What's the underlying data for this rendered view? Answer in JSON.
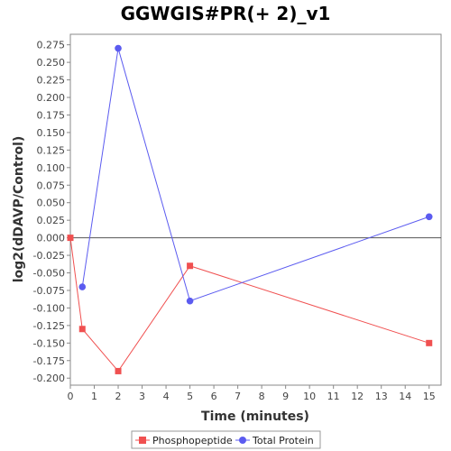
{
  "chart_data": {
    "type": "line",
    "title": "GGWGIS#PR(+ 2)_v1",
    "xlabel": "Time (minutes)",
    "ylabel": "log2(dDAVP/Control)",
    "xlim": [
      0,
      15.5
    ],
    "ylim": [
      -0.21,
      0.29
    ],
    "x_ticks": [
      0,
      1,
      2,
      3,
      4,
      5,
      6,
      7,
      8,
      9,
      10,
      11,
      12,
      13,
      14,
      15
    ],
    "y_ticks": [
      0.275,
      0.25,
      0.225,
      0.2,
      0.175,
      0.15,
      0.125,
      0.1,
      0.075,
      0.05,
      0.025,
      0.0,
      -0.025,
      -0.05,
      -0.075,
      -0.1,
      -0.125,
      -0.15,
      -0.175,
      -0.2
    ],
    "y_tick_labels": [
      "0.275",
      "0.250",
      "0.225",
      "0.200",
      "0.175",
      "0.150",
      "0.125",
      "0.100",
      "0.075",
      "0.050",
      "0.025",
      "0.000",
      "-0.025",
      "-0.050",
      "-0.075",
      "-0.100",
      "-0.125",
      "-0.150",
      "-0.175",
      "-0.200"
    ],
    "grid": false,
    "zero_line": true,
    "legend_position": "bottom",
    "series": [
      {
        "name": "Phosphopeptide",
        "color": "#f05050",
        "marker": "square",
        "x": [
          0,
          0.5,
          2,
          5,
          15
        ],
        "y": [
          0.0,
          -0.13,
          -0.19,
          -0.04,
          -0.15
        ]
      },
      {
        "name": "Total Protein",
        "color": "#5b5bf0",
        "marker": "circle",
        "x": [
          0.5,
          2,
          5,
          15
        ],
        "y": [
          -0.07,
          0.27,
          -0.09,
          0.03
        ]
      }
    ]
  }
}
